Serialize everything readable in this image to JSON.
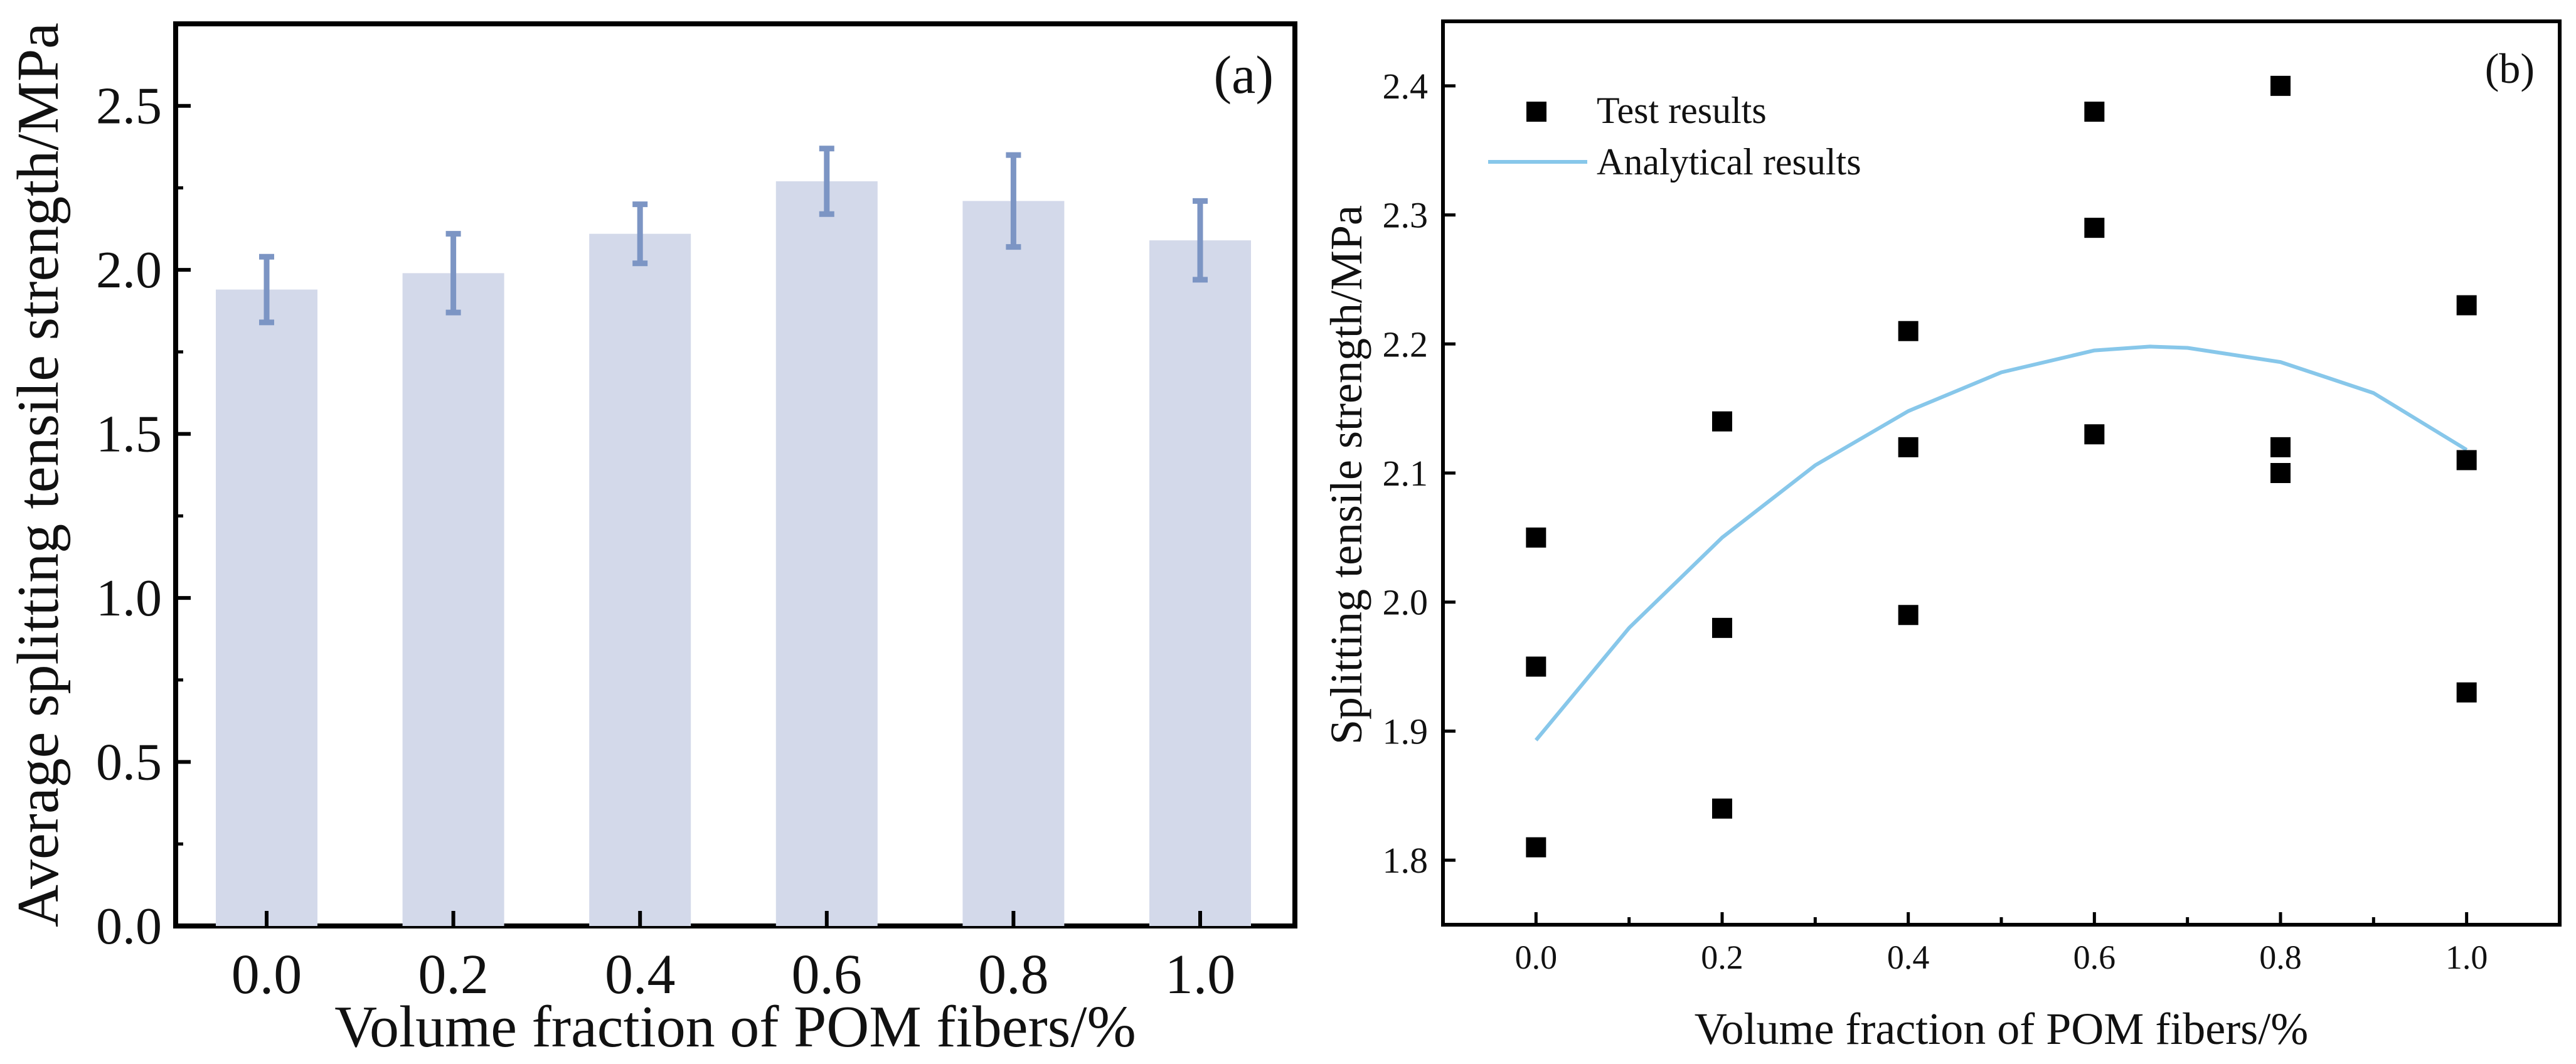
{
  "colors": {
    "bar_fill": "#d3d9ea",
    "error_bar": "#7c95c4",
    "marker": "#000000",
    "analytical_line": "#87c7ea",
    "axis": "#000000"
  },
  "chart_data": [
    {
      "type": "bar",
      "panel_label": "(a)",
      "title": "",
      "xlabel": "Volume fraction of POM fibers/%",
      "ylabel": "Average splitting tensile strength/MPa",
      "categories": [
        "0.0",
        "0.2",
        "0.4",
        "0.6",
        "0.8",
        "1.0"
      ],
      "values": [
        1.94,
        1.99,
        2.11,
        2.27,
        2.21,
        2.09
      ],
      "error_bars": [
        [
          1.84,
          2.04
        ],
        [
          1.87,
          2.11
        ],
        [
          2.02,
          2.2
        ],
        [
          2.17,
          2.37
        ],
        [
          2.07,
          2.35
        ],
        [
          1.97,
          2.21
        ]
      ],
      "ylim": [
        0,
        2.75
      ],
      "yticks": [
        0.0,
        0.5,
        1.0,
        1.5,
        2.0,
        2.5
      ],
      "ytick_labels": [
        "0.0",
        "0.5",
        "1.0",
        "1.5",
        "2.0",
        "2.5"
      ],
      "grid": false
    },
    {
      "type": "scatter",
      "panel_label": "(b)",
      "title": "",
      "xlabel": "Volume fraction of POM fibers/%",
      "ylabel": "Splitting tensile strength/MPa",
      "xlim": [
        -0.1,
        1.1
      ],
      "ylim": [
        1.75,
        2.45
      ],
      "xticks": [
        0.0,
        0.2,
        0.4,
        0.6,
        0.8,
        1.0
      ],
      "xtick_labels": [
        "0.0",
        "0.2",
        "0.4",
        "0.6",
        "0.8",
        "1.0"
      ],
      "yticks": [
        1.8,
        1.9,
        2.0,
        2.1,
        2.2,
        2.3,
        2.4
      ],
      "ytick_labels": [
        "1.8",
        "1.9",
        "2.0",
        "2.1",
        "2.2",
        "2.3",
        "2.4"
      ],
      "legend_position": "top-left",
      "grid": false,
      "series": [
        {
          "name": "Test results",
          "kind": "scatter",
          "x": [
            0.0,
            0.0,
            0.0,
            0.2,
            0.2,
            0.2,
            0.4,
            0.4,
            0.4,
            0.6,
            0.6,
            0.6,
            0.8,
            0.8,
            0.8,
            1.0,
            1.0,
            1.0
          ],
          "y": [
            2.05,
            1.95,
            1.81,
            2.14,
            1.98,
            1.84,
            2.21,
            2.12,
            1.99,
            2.38,
            2.29,
            2.13,
            2.4,
            2.12,
            2.1,
            2.23,
            2.11,
            1.93
          ]
        },
        {
          "name": "Analytical results",
          "kind": "line",
          "x": [
            0.0,
            0.1,
            0.2,
            0.3,
            0.4,
            0.5,
            0.6,
            0.66,
            0.7,
            0.8,
            0.9,
            1.0
          ],
          "y": [
            1.893,
            1.98,
            2.05,
            2.106,
            2.148,
            2.178,
            2.195,
            2.198,
            2.197,
            2.186,
            2.162,
            2.118
          ]
        }
      ]
    }
  ]
}
